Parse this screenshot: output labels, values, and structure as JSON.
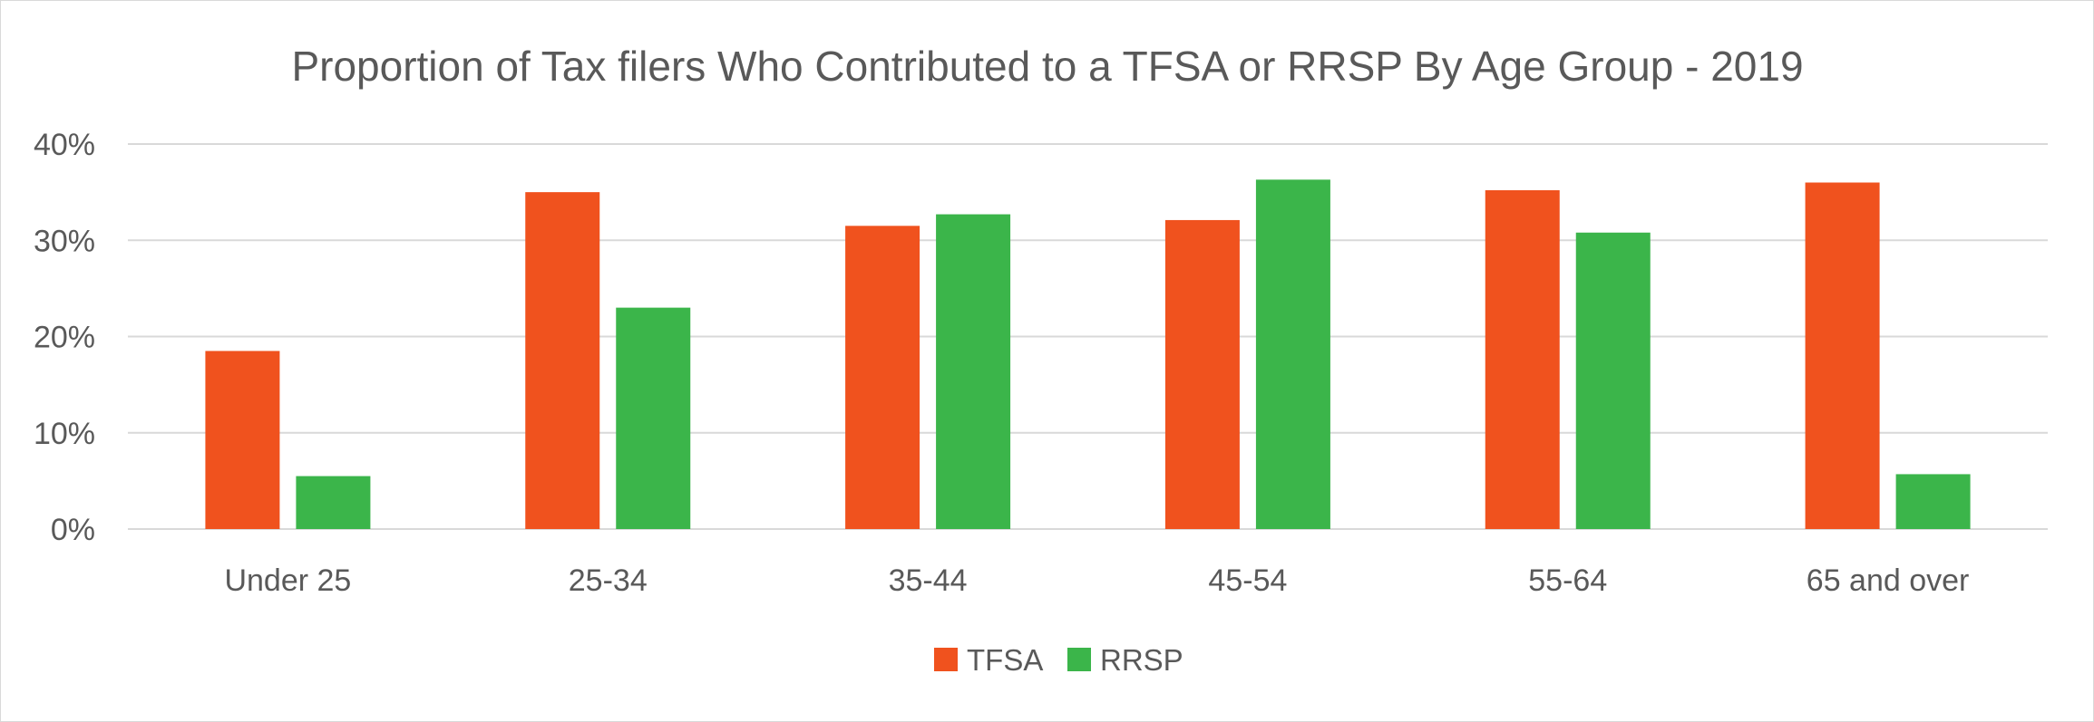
{
  "chart_data": {
    "type": "bar",
    "title": "Proportion of Tax filers Who Contributed to a TFSA or RRSP By Age Group - 2019",
    "categories": [
      "Under 25",
      "25-34",
      "35-44",
      "45-54",
      "55-64",
      "65 and over"
    ],
    "series": [
      {
        "name": "TFSA",
        "color": "#f0521e",
        "values": [
          18.5,
          35.0,
          31.5,
          32.1,
          35.2,
          36.0
        ]
      },
      {
        "name": "RRSP",
        "color": "#3bb54a",
        "values": [
          5.5,
          23.0,
          32.7,
          36.3,
          30.8,
          5.7
        ]
      }
    ],
    "ylim": [
      0,
      40
    ],
    "yticks": [
      0,
      10,
      20,
      30,
      40
    ],
    "ytick_labels": [
      "0%",
      "10%",
      "20%",
      "30%",
      "40%"
    ],
    "grid": true,
    "legend_position": "bottom",
    "gridline_color": "#d9d9d9"
  }
}
